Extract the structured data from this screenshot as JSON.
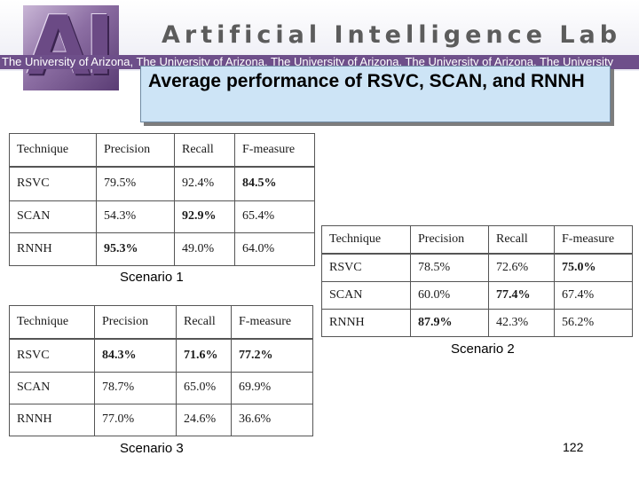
{
  "header": {
    "logo_text": "AI",
    "lab_title": "Artificial Intelligence Lab",
    "ticker_text": "The University of Arizona, The University of Arizona, The University of Arizona, The University of Arizona, The University",
    "accent_color": "#6e4f8a"
  },
  "slide": {
    "title": "Average performance of RSVC, SCAN, and RNNH",
    "page_number": "122"
  },
  "scenario1": {
    "label": "Scenario 1",
    "headers": [
      "Technique",
      "Precision",
      "Recall",
      "F-measure"
    ],
    "rows": [
      [
        "RSVC",
        "79.5%",
        "92.4%",
        "84.5%"
      ],
      [
        "SCAN",
        "54.3%",
        "92.9%",
        "65.4%"
      ],
      [
        "RNNH",
        "95.3%",
        "49.0%",
        "64.0%"
      ]
    ]
  },
  "scenario2": {
    "label": "Scenario 2",
    "headers": [
      "Technique",
      "Precision",
      "Recall",
      "F-measure"
    ],
    "rows": [
      [
        "RSVC",
        "78.5%",
        "72.6%",
        "75.0%"
      ],
      [
        "SCAN",
        "60.0%",
        "77.4%",
        "67.4%"
      ],
      [
        "RNNH",
        "87.9%",
        "42.3%",
        "56.2%"
      ]
    ]
  },
  "scenario3": {
    "label": "Scenario 3",
    "headers": [
      "Technique",
      "Precision",
      "Recall",
      "F-measure"
    ],
    "rows": [
      [
        "RSVC",
        "84.3%",
        "71.6%",
        "77.2%"
      ],
      [
        "SCAN",
        "78.7%",
        "65.0%",
        "69.9%"
      ],
      [
        "RNNH",
        "77.0%",
        "24.6%",
        "36.6%"
      ]
    ]
  }
}
